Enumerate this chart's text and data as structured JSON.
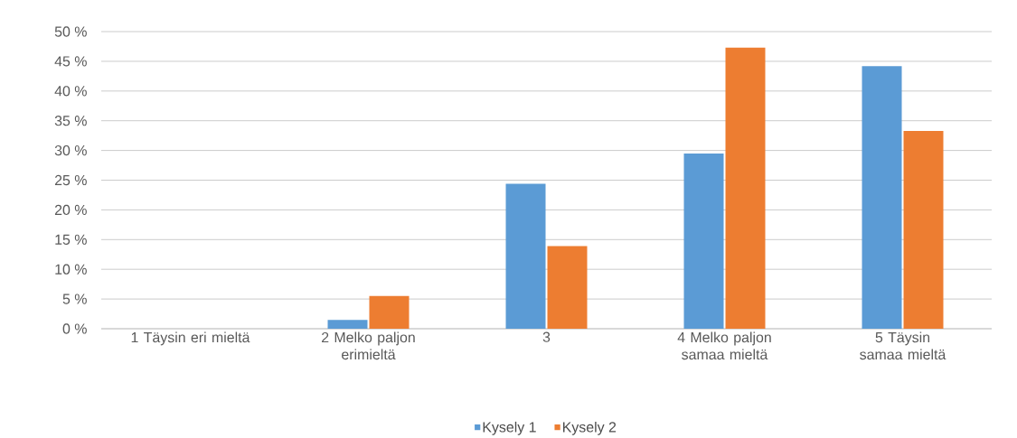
{
  "chart_data": {
    "type": "bar",
    "categories": [
      "1 Täysin eri mieltä",
      "2 Melko paljon erimieltä",
      "3",
      "4 Melko paljon samaa mieltä",
      "5 Täysin samaa mieltä"
    ],
    "series": [
      {
        "name": "Kysely 1",
        "color": "#5b9bd5",
        "values": [
          0,
          1.5,
          24.4,
          29.5,
          44.2
        ]
      },
      {
        "name": "Kysely 2",
        "color": "#ed7d31",
        "values": [
          0,
          5.5,
          13.9,
          47.3,
          33.3
        ]
      }
    ],
    "ylim": [
      0,
      50
    ],
    "yticks": [
      {
        "value": 0,
        "label": "0 %"
      },
      {
        "value": 5,
        "label": "5 %"
      },
      {
        "value": 10,
        "label": "10 %"
      },
      {
        "value": 15,
        "label": "15 %"
      },
      {
        "value": 20,
        "label": "20 %"
      },
      {
        "value": 25,
        "label": "25 %"
      },
      {
        "value": 30,
        "label": "30 %"
      },
      {
        "value": 35,
        "label": "35 %"
      },
      {
        "value": 40,
        "label": "40 %"
      },
      {
        "value": 45,
        "label": "45 %"
      },
      {
        "value": 50,
        "label": "50 %"
      }
    ],
    "grid": "y",
    "legend": "bottom"
  }
}
